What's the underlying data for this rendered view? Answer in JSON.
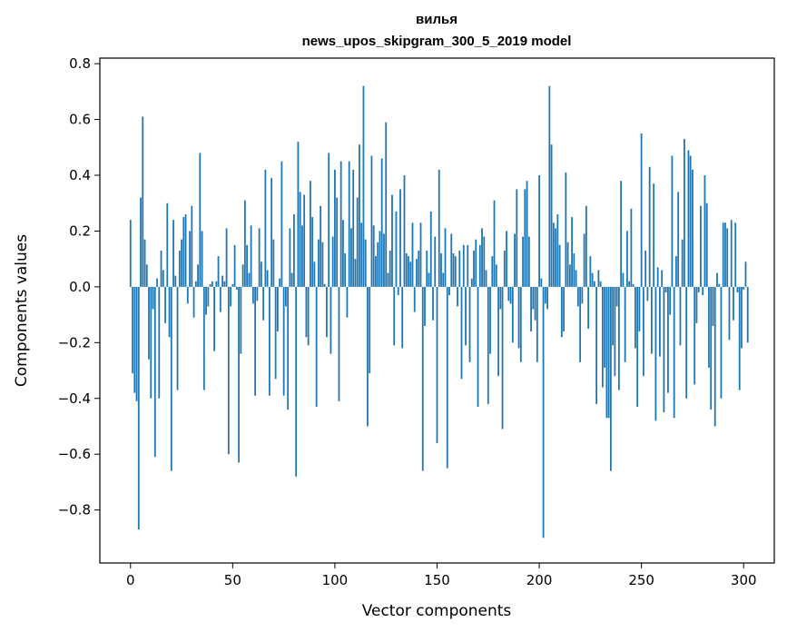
{
  "chart_data": {
    "type": "bar",
    "title_line1": "вилья",
    "title_line2": "news_upos_skipgram_300_5_2019 model",
    "xlabel": "Vector components",
    "ylabel": "Components values",
    "xlim": [
      -15,
      315
    ],
    "ylim": [
      -0.99,
      0.82
    ],
    "xticks": [
      0,
      50,
      100,
      150,
      200,
      250,
      300
    ],
    "yticks": [
      -0.8,
      -0.6,
      -0.4,
      -0.2,
      0.0,
      0.2,
      0.4,
      0.6,
      0.8
    ],
    "yticklabels": [
      "−0.8",
      "−0.6",
      "−0.4",
      "−0.2",
      "0.0",
      "0.2",
      "0.4",
      "0.6",
      "0.8"
    ],
    "xticklabels": [
      "0",
      "50",
      "100",
      "150",
      "200",
      "250",
      "300"
    ],
    "bar_color": "#1f77b4",
    "grid": false,
    "values": [
      0.24,
      -0.31,
      -0.38,
      -0.41,
      -0.87,
      0.32,
      0.61,
      0.17,
      0.08,
      -0.26,
      -0.4,
      -0.08,
      -0.61,
      0.03,
      -0.4,
      0.13,
      0.06,
      -0.13,
      0.3,
      -0.18,
      -0.66,
      0.24,
      0.04,
      -0.37,
      0.13,
      0.17,
      0.25,
      0.26,
      -0.06,
      0.2,
      0.29,
      -0.11,
      0.02,
      0.08,
      0.48,
      0.2,
      -0.37,
      -0.1,
      -0.07,
      0.01,
      0.02,
      -0.23,
      0.02,
      0.11,
      -0.09,
      0.04,
      0.02,
      0.21,
      -0.6,
      -0.07,
      0.01,
      0.15,
      -0.01,
      -0.63,
      -0.24,
      0.08,
      0.31,
      0.15,
      0.05,
      0.22,
      -0.06,
      -0.39,
      -0.05,
      0.21,
      0.09,
      -0.12,
      0.42,
      0.06,
      -0.39,
      0.39,
      0.17,
      -0.33,
      -0.16,
      0.03,
      0.45,
      -0.39,
      -0.07,
      -0.44,
      0.21,
      0.05,
      0.26,
      -0.68,
      0.52,
      0.34,
      0.22,
      0.33,
      -0.18,
      -0.21,
      0.38,
      0.25,
      0.09,
      -0.43,
      0.17,
      0.29,
      0.16,
      0.01,
      -0.18,
      0.48,
      -0.24,
      0.18,
      0.42,
      0.32,
      -0.41,
      0.45,
      0.24,
      0.12,
      -0.11,
      0.45,
      0.21,
      0.42,
      0.1,
      0.32,
      0.51,
      0.23,
      0.72,
      0.17,
      -0.5,
      -0.31,
      0.47,
      0.22,
      0.11,
      0.16,
      0.2,
      0.46,
      0.19,
      0.59,
      0.05,
      0.13,
      0.33,
      -0.21,
      0.27,
      -0.03,
      0.35,
      -0.22,
      0.4,
      0.12,
      0.11,
      0.09,
      0.23,
      -0.09,
      0.1,
      0.13,
      0.23,
      -0.66,
      -0.14,
      0.13,
      0.05,
      0.27,
      -0.12,
      0.18,
      -0.56,
      0.42,
      0.12,
      0.05,
      0.21,
      -0.65,
      -0.03,
      0.19,
      0.12,
      0.11,
      -0.07,
      0.13,
      -0.33,
      0.15,
      -0.21,
      0.15,
      -0.27,
      0.03,
      0.13,
      0.17,
      -0.43,
      0.15,
      0.21,
      0.18,
      0.06,
      -0.42,
      -0.24,
      0.11,
      0.31,
      0.08,
      -0.32,
      -0.08,
      -0.51,
      0.13,
      0.2,
      -0.05,
      -0.06,
      -0.2,
      0.19,
      0.35,
      -0.22,
      -0.27,
      0.18,
      0.35,
      0.38,
      0.18,
      -0.16,
      -0.08,
      -0.12,
      -0.27,
      0.4,
      0.03,
      -0.9,
      -0.06,
      -0.08,
      0.72,
      0.51,
      0.23,
      0.21,
      0.26,
      0.15,
      -0.18,
      -0.16,
      0.41,
      0.16,
      0.08,
      0.25,
      0.12,
      0.06,
      -0.07,
      -0.27,
      -0.06,
      0.19,
      0.29,
      -0.15,
      0.11,
      0.05,
      0.02,
      -0.42,
      0.06,
      0.02,
      -0.36,
      -0.29,
      -0.47,
      -0.47,
      -0.66,
      -0.21,
      -0.32,
      -0.07,
      -0.37,
      0.38,
      0.05,
      -0.27,
      0.2,
      0.02,
      0.28,
      0.01,
      -0.22,
      -0.43,
      -0.16,
      0.55,
      -0.32,
      0.13,
      -0.05,
      0.43,
      -0.24,
      0.37,
      -0.48,
      0.07,
      -0.25,
      0.06,
      -0.45,
      -0.02,
      -0.38,
      -0.1,
      0.47,
      -0.47,
      0.11,
      0.34,
      -0.21,
      0.17,
      0.53,
      -0.4,
      0.49,
      0.47,
      0.42,
      -0.35,
      -0.13,
      -0.02,
      0.29,
      -0.03,
      0.4,
      0.3,
      -0.29,
      -0.44,
      -0.14,
      -0.5,
      0.05,
      0.01,
      -0.4,
      0.23,
      0.23,
      0.21,
      -0.19,
      0.24,
      -0.12,
      0.23,
      -0.02,
      -0.37,
      -0.22,
      -0.01,
      0.09,
      -0.2
    ]
  }
}
